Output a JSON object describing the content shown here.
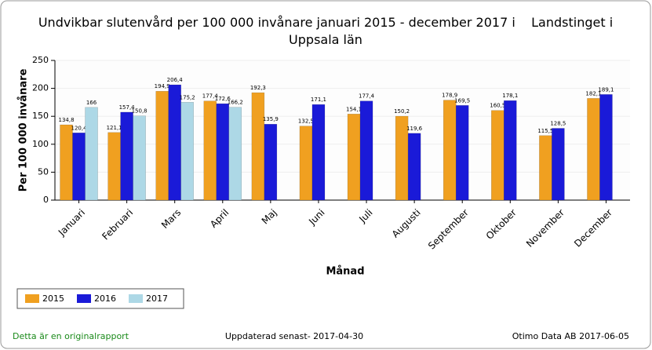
{
  "chart_data": {
    "type": "bar",
    "title": "Undvikbar slutenvård per 100 000 invånare januari 2015 - december 2017 i    Landstinget i Uppsala län",
    "y_label": "Per 100 000 invånare",
    "x_label": "Månad",
    "categories": [
      "Januari",
      "Februari",
      "Mars",
      "April",
      "Maj",
      "Juni",
      "Juli",
      "Augusti",
      "September",
      "Oktober",
      "November",
      "December"
    ],
    "series": [
      {
        "name": "2015",
        "color": "#f0a020",
        "values": [
          134.8,
          121.1,
          194.9,
          177.4,
          192.3,
          132.5,
          154.1,
          150.2,
          178.9,
          160.5,
          115.5,
          182.1
        ],
        "value_labels": [
          "134,8",
          "121,1",
          "194,9",
          "177,4",
          "192,3",
          "132,5",
          "154,1",
          "150,2",
          "178,9",
          "160,5",
          "115,5",
          "182,1"
        ]
      },
      {
        "name": "2016",
        "color": "#1a1ad8",
        "values": [
          120.4,
          157.4,
          206.4,
          172.6,
          135.9,
          171.1,
          177.4,
          119.6,
          169.5,
          178.1,
          128.5,
          189.1
        ],
        "value_labels": [
          "120,4",
          "157,4",
          "206,4",
          "172,6",
          "135,9",
          "171,1",
          "177,4",
          "119,6",
          "169,5",
          "178,1",
          "128,5",
          "189,1"
        ]
      },
      {
        "name": "2017",
        "color": "#add8e6",
        "values": [
          166,
          150.8,
          175.2,
          166.2,
          null,
          null,
          null,
          null,
          null,
          null,
          null,
          null
        ],
        "value_labels": [
          "166",
          "150,8",
          "175,2",
          "166,2",
          null,
          null,
          null,
          null,
          null,
          null,
          null,
          null
        ]
      }
    ],
    "ylim": [
      0,
      250
    ],
    "yticks": [
      0,
      50,
      100,
      150,
      200,
      250
    ],
    "grid": true,
    "legend": "bottom-left",
    "footer": {
      "left": "Detta är en originalrapport",
      "center": "Uppdaterad senast- 2017-04-30",
      "right": "Otimo Data AB 2017-06-05"
    }
  }
}
